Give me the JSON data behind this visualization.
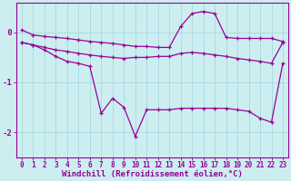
{
  "xlabel": "Windchill (Refroidissement éolien,°C)",
  "background_color": "#cceef0",
  "line_color": "#990099",
  "x_hours": [
    0,
    1,
    2,
    3,
    4,
    5,
    6,
    7,
    8,
    9,
    10,
    11,
    12,
    13,
    14,
    15,
    16,
    17,
    18,
    19,
    20,
    21,
    22,
    23
  ],
  "y_upper": [
    0.05,
    -0.05,
    -0.08,
    -0.1,
    -0.12,
    -0.15,
    -0.18,
    -0.2,
    -0.22,
    -0.25,
    -0.28,
    -0.28,
    -0.3,
    -0.3,
    0.12,
    0.38,
    0.42,
    0.38,
    -0.1,
    -0.12,
    -0.12,
    -0.12,
    -0.12,
    -0.18
  ],
  "y_main": [
    -0.2,
    -0.25,
    -0.3,
    -0.35,
    -0.38,
    -0.42,
    -0.45,
    -0.48,
    -0.5,
    -0.52,
    -0.5,
    -0.5,
    -0.48,
    -0.48,
    -0.42,
    -0.4,
    -0.42,
    -0.45,
    -0.48,
    -0.52,
    -0.55,
    -0.58,
    -0.62,
    -0.2
  ],
  "y_lower": [
    -0.2,
    -0.25,
    -0.35,
    -0.48,
    -0.58,
    -0.62,
    -0.68,
    -1.62,
    -1.32,
    -1.5,
    -2.08,
    -1.55,
    -1.55,
    -1.55,
    -1.52,
    -1.52,
    -1.52,
    -1.52,
    -1.52,
    -1.55,
    -1.58,
    -1.72,
    -1.8,
    -0.62
  ],
  "ylim": [
    -2.5,
    0.6
  ],
  "yticks": [
    0,
    -1,
    -2
  ],
  "grid_color": "#aad8dc",
  "font_color": "#990099",
  "font_size": 6.5
}
